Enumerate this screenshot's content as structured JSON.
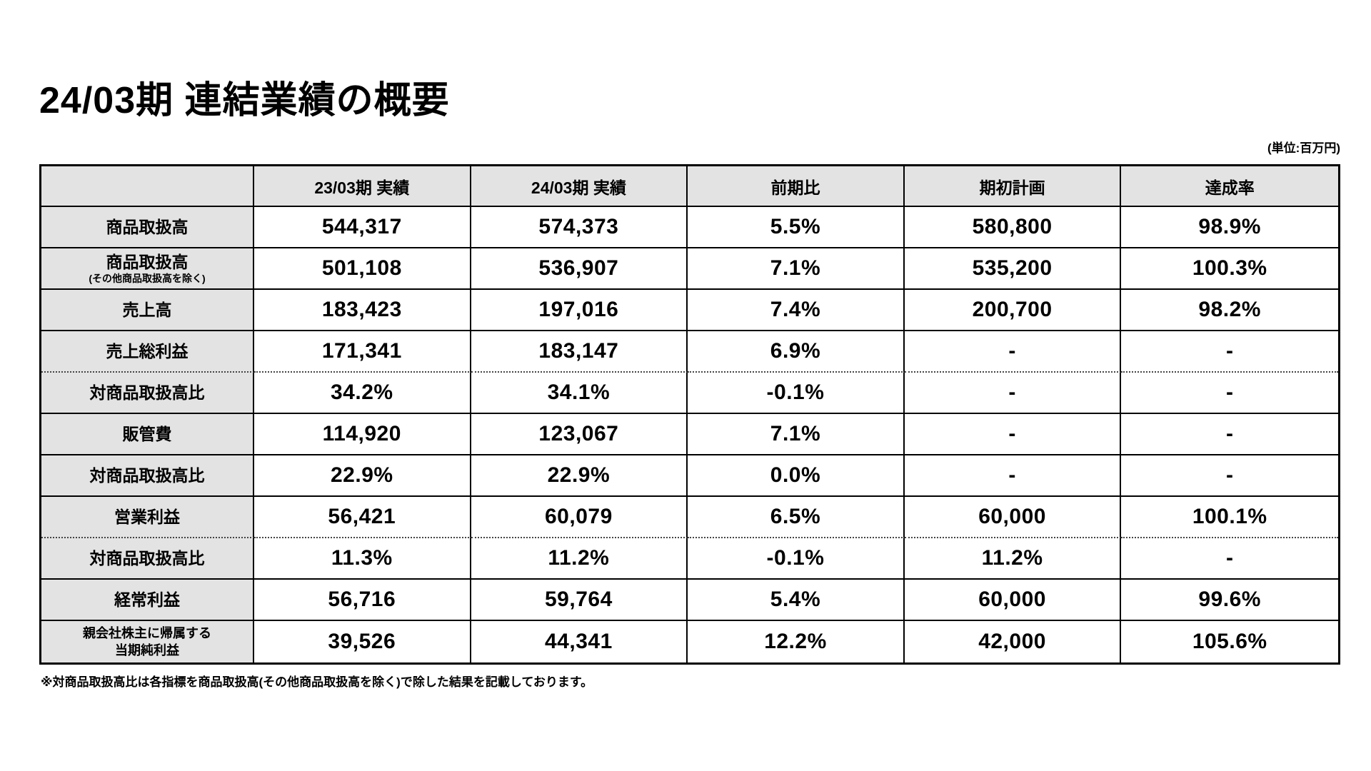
{
  "page": {
    "title": "24/03期 連結業績の概要",
    "unit_label": "(単位:百万円)",
    "footnote": "※対商品取扱高比は各指標を商品取扱高(その他商品取扱高を除く)で除した結果を記載しております。"
  },
  "table": {
    "columns": [
      "",
      "23/03期 実績",
      "24/03期 実績",
      "前期比",
      "期初計画",
      "達成率"
    ],
    "rows": [
      {
        "label_lines": [
          "商品取扱高"
        ],
        "sublabel": "",
        "values": [
          "544,317",
          "574,373",
          "5.5%",
          "580,800",
          "98.9%"
        ],
        "dotted_bottom": false
      },
      {
        "label_lines": [
          "商品取扱高"
        ],
        "sublabel": "(その他商品取扱高を除く)",
        "values": [
          "501,108",
          "536,907",
          "7.1%",
          "535,200",
          "100.3%"
        ],
        "dotted_bottom": false
      },
      {
        "label_lines": [
          "売上高"
        ],
        "sublabel": "",
        "values": [
          "183,423",
          "197,016",
          "7.4%",
          "200,700",
          "98.2%"
        ],
        "dotted_bottom": false
      },
      {
        "label_lines": [
          "売上総利益"
        ],
        "sublabel": "",
        "values": [
          "171,341",
          "183,147",
          "6.9%",
          "-",
          "-"
        ],
        "dotted_bottom": true
      },
      {
        "label_lines": [
          "対商品取扱高比"
        ],
        "sublabel": "",
        "values": [
          "34.2%",
          "34.1%",
          "-0.1%",
          "-",
          "-"
        ],
        "dotted_bottom": false
      },
      {
        "label_lines": [
          "販管費"
        ],
        "sublabel": "",
        "values": [
          "114,920",
          "123,067",
          "7.1%",
          "-",
          "-"
        ],
        "dotted_bottom": false
      },
      {
        "label_lines": [
          "対商品取扱高比"
        ],
        "sublabel": "",
        "values": [
          "22.9%",
          "22.9%",
          "0.0%",
          "-",
          "-"
        ],
        "dotted_bottom": false
      },
      {
        "label_lines": [
          "営業利益"
        ],
        "sublabel": "",
        "values": [
          "56,421",
          "60,079",
          "6.5%",
          "60,000",
          "100.1%"
        ],
        "dotted_bottom": true
      },
      {
        "label_lines": [
          "対商品取扱高比"
        ],
        "sublabel": "",
        "values": [
          "11.3%",
          "11.2%",
          "-0.1%",
          "11.2%",
          "-"
        ],
        "dotted_bottom": false
      },
      {
        "label_lines": [
          "経常利益"
        ],
        "sublabel": "",
        "values": [
          "56,716",
          "59,764",
          "5.4%",
          "60,000",
          "99.6%"
        ],
        "dotted_bottom": false
      },
      {
        "label_lines": [
          "親会社株主に帰属する",
          "当期純利益"
        ],
        "sublabel": "",
        "values": [
          "39,526",
          "44,341",
          "12.2%",
          "42,000",
          "105.6%"
        ],
        "dotted_bottom": false
      }
    ]
  }
}
